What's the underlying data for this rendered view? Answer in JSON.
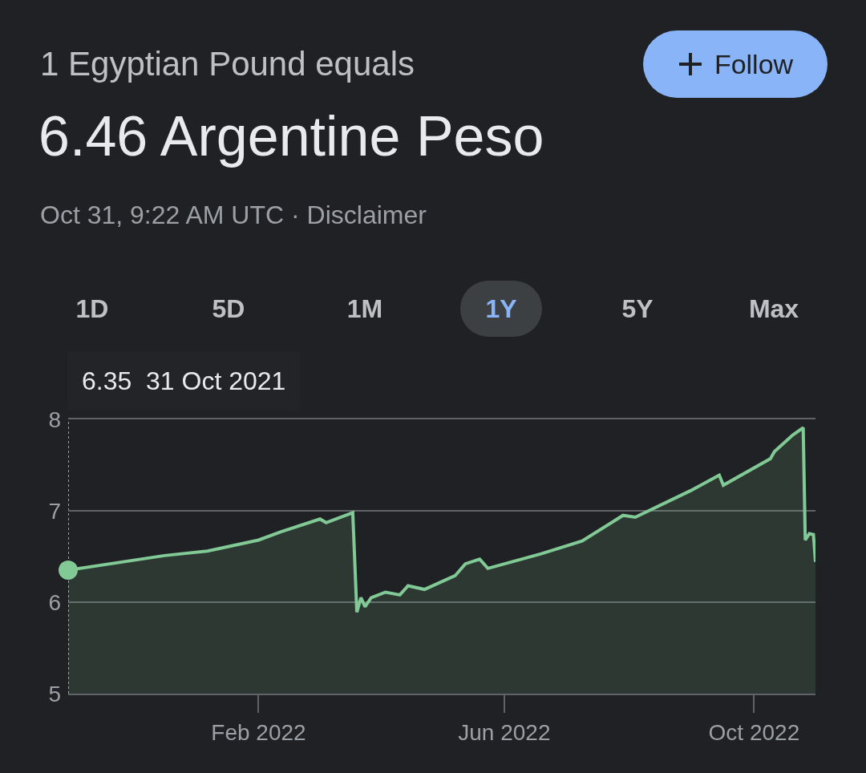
{
  "chart_data": {
    "type": "area",
    "subtitle": "1 Egyptian Pound equals",
    "title": "6.46 Argentine Peso",
    "annotations": [
      "Oct 31, 9:22 AM UTC · Disclaimer",
      "Follow",
      "1D",
      "5D",
      "1M",
      "1Y",
      "5Y",
      "Max",
      "6.35  31 Oct 2021"
    ],
    "x": [
      "2021-10-31",
      "2021-12-17",
      "2022-01-07",
      "2022-02-01",
      "2022-02-12",
      "2022-03-03",
      "2022-03-06",
      "2022-03-19",
      "2022-03-21",
      "2022-03-23",
      "2022-03-25",
      "2022-03-28",
      "2022-04-04",
      "2022-04-11",
      "2022-04-15",
      "2022-04-23",
      "2022-05-08",
      "2022-05-13",
      "2022-05-20",
      "2022-05-24",
      "2022-06-19",
      "2022-07-09",
      "2022-07-29",
      "2022-08-04",
      "2022-08-31",
      "2022-09-14",
      "2022-09-16",
      "2022-10-09",
      "2022-10-11",
      "2022-10-20",
      "2022-10-25",
      "2022-10-26",
      "2022-10-28",
      "2022-10-30",
      "2022-10-31"
    ],
    "series": [
      {
        "color": "#81c995",
        "values": [
          6.35,
          6.51,
          6.56,
          6.68,
          6.77,
          6.91,
          6.87,
          6.98,
          5.89,
          6.05,
          5.95,
          6.05,
          6.11,
          6.08,
          6.18,
          6.14,
          6.29,
          6.42,
          6.47,
          6.37,
          6.53,
          6.67,
          6.95,
          6.93,
          7.22,
          7.39,
          7.28,
          7.57,
          7.65,
          7.83,
          7.91,
          6.68,
          6.75,
          6.74,
          6.44
        ]
      }
    ],
    "xlim": [
      "2021-10-31",
      "2022-10-31"
    ],
    "xticks": [
      {
        "value": "2022-02-01",
        "label": "Feb 2022"
      },
      {
        "value": "2022-06-01",
        "label": "Jun 2022"
      },
      {
        "value": "2022-10-01",
        "label": "Oct 2022"
      }
    ],
    "ylim": [
      5,
      8
    ],
    "yticks": [
      5,
      6,
      7,
      8
    ],
    "grid": "y",
    "ref_lines": [
      {
        "axis": "x",
        "value": "2021-10-31",
        "color": "#9aa0a6",
        "line_style": "dotted"
      }
    ]
  }
}
